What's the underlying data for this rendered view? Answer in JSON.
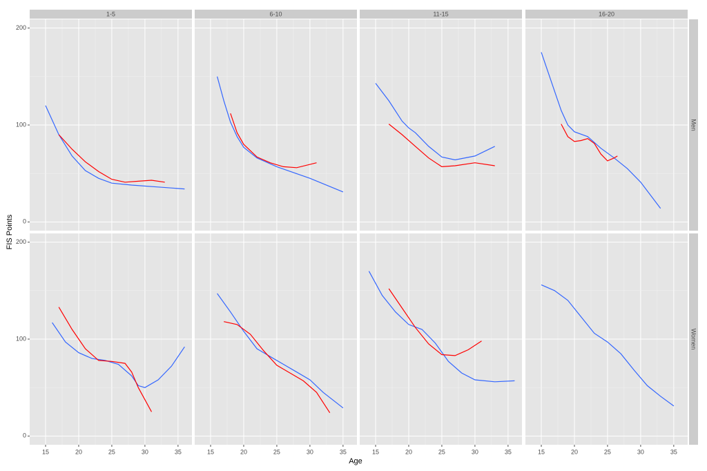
{
  "chart_data": {
    "type": "line",
    "x_label": "Age",
    "y_label": "FIS Points",
    "columns": [
      "1-5",
      "6-10",
      "11-15",
      "16-20"
    ],
    "rows": [
      "Men",
      "Women"
    ],
    "xlim": [
      12.6,
      37.1
    ],
    "xticks": [
      15,
      20,
      25,
      30,
      35
    ],
    "ylim": [
      -9,
      209
    ],
    "yticks": [
      0,
      100,
      200
    ],
    "grid": true,
    "panels": [
      [
        {
          "series": [
            {
              "color": "#3366ff",
              "x": [
                15,
                17,
                19,
                21,
                23,
                25,
                28,
                32,
                36
              ],
              "values": [
                120,
                90,
                68,
                53,
                45,
                40,
                38,
                36,
                34
              ]
            },
            {
              "color": "#ff0000",
              "x": [
                17,
                19,
                21,
                23,
                25,
                27,
                29,
                31,
                33
              ],
              "values": [
                90,
                75,
                62,
                52,
                44,
                41,
                42,
                43,
                41
              ]
            }
          ]
        },
        {
          "series": [
            {
              "color": "#3366ff",
              "x": [
                16,
                17,
                18,
                19,
                20,
                22,
                25,
                30,
                35
              ],
              "values": [
                150,
                125,
                103,
                88,
                77,
                66,
                57,
                45,
                31
              ]
            },
            {
              "color": "#ff0000",
              "x": [
                18,
                19,
                20,
                22,
                24,
                26,
                28,
                31
              ],
              "values": [
                112,
                92,
                80,
                67,
                61,
                57,
                56,
                61
              ]
            }
          ]
        },
        {
          "series": [
            {
              "color": "#3366ff",
              "x": [
                15,
                17,
                19,
                20,
                21,
                23,
                25,
                27,
                30,
                33
              ],
              "values": [
                143,
                125,
                104,
                97,
                92,
                78,
                67,
                64,
                68,
                78
              ]
            },
            {
              "color": "#ff0000",
              "x": [
                17,
                19,
                21,
                23,
                25,
                27,
                30,
                33
              ],
              "values": [
                101,
                90,
                78,
                66,
                57,
                58,
                61,
                58
              ]
            }
          ]
        },
        {
          "series": [
            {
              "color": "#3366ff",
              "x": [
                15,
                16,
                17,
                18,
                19,
                20,
                22,
                24,
                26,
                28,
                30,
                33
              ],
              "values": [
                175,
                155,
                135,
                115,
                100,
                93,
                88,
                76,
                66,
                55,
                41,
                14
              ]
            },
            {
              "color": "#ff0000",
              "x": [
                18,
                19,
                20,
                21,
                22,
                23,
                24,
                25,
                26,
                26.5
              ],
              "values": [
                101,
                88,
                83,
                84,
                86,
                81,
                70,
                63,
                66,
                68
              ]
            }
          ]
        }
      ],
      [
        {
          "series": [
            {
              "color": "#3366ff",
              "x": [
                16,
                18,
                20,
                22,
                24,
                26,
                28,
                29,
                30,
                32,
                34,
                36
              ],
              "values": [
                117,
                97,
                86,
                80,
                78,
                74,
                62,
                52,
                50,
                58,
                72,
                92
              ]
            },
            {
              "color": "#ff0000",
              "x": [
                17,
                19,
                21,
                23,
                25,
                27,
                28,
                29,
                31
              ],
              "values": [
                133,
                110,
                90,
                78,
                77,
                75,
                66,
                50,
                25
              ]
            }
          ]
        },
        {
          "series": [
            {
              "color": "#3366ff",
              "x": [
                16,
                18,
                20,
                22,
                24,
                26,
                28,
                30,
                32,
                35
              ],
              "values": [
                147,
                128,
                108,
                90,
                82,
                74,
                66,
                58,
                45,
                29
              ]
            },
            {
              "color": "#ff0000",
              "x": [
                17,
                19,
                21,
                23,
                25,
                27,
                29,
                31,
                33
              ],
              "values": [
                118,
                115,
                105,
                88,
                73,
                65,
                57,
                45,
                24
              ]
            }
          ]
        },
        {
          "series": [
            {
              "color": "#3366ff",
              "x": [
                14,
                16,
                18,
                20,
                22,
                24,
                26,
                28,
                30,
                33,
                36
              ],
              "values": [
                170,
                145,
                128,
                115,
                110,
                96,
                77,
                65,
                58,
                56,
                57
              ]
            },
            {
              "color": "#ff0000",
              "x": [
                17,
                19,
                21,
                23,
                25,
                27,
                29,
                31
              ],
              "values": [
                152,
                132,
                112,
                95,
                84,
                83,
                89,
                98
              ]
            }
          ]
        },
        {
          "series": [
            {
              "color": "#3366ff",
              "x": [
                15,
                17,
                19,
                21,
                23,
                25,
                27,
                29,
                31,
                33,
                35
              ],
              "values": [
                156,
                150,
                140,
                123,
                106,
                97,
                85,
                68,
                52,
                41,
                31
              ]
            }
          ]
        }
      ]
    ]
  }
}
